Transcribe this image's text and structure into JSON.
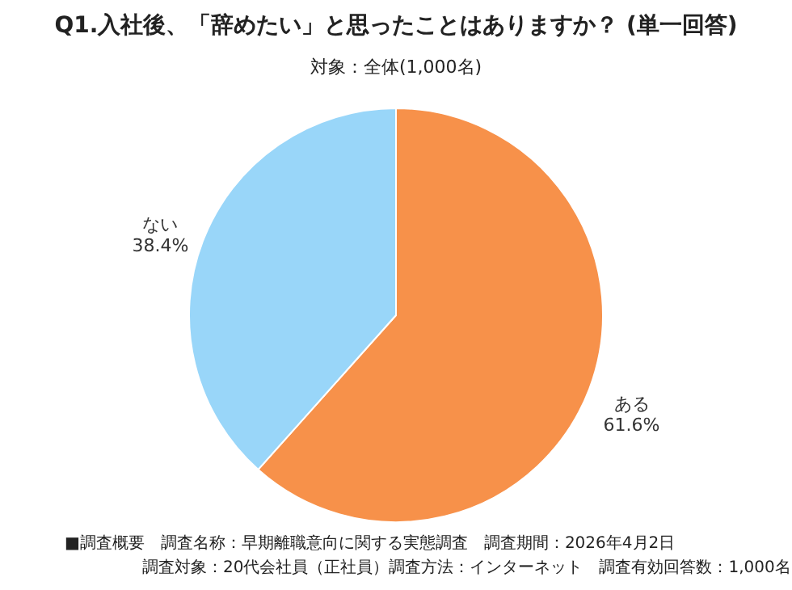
{
  "chart_data": {
    "type": "pie",
    "title": "Q1.入社後、「辞めたい」と思ったことはありますか？ (単一回答)",
    "subtitle": "対象：全体(1,000名)",
    "categories": [
      "ある",
      "ない"
    ],
    "values": [
      61.6,
      38.4
    ],
    "colors": [
      "#f7914a",
      "#99d6f9"
    ],
    "value_labels": [
      "61.6%",
      "38.4%"
    ],
    "annotations": [
      "■調査概要　調査名称：早期離職意向に関する実態調査　調査期間：2026年4月2日",
      "調査対象：20代会社員（正社員）調査方法：インターネット　調査有効回答数：1,000名"
    ]
  }
}
